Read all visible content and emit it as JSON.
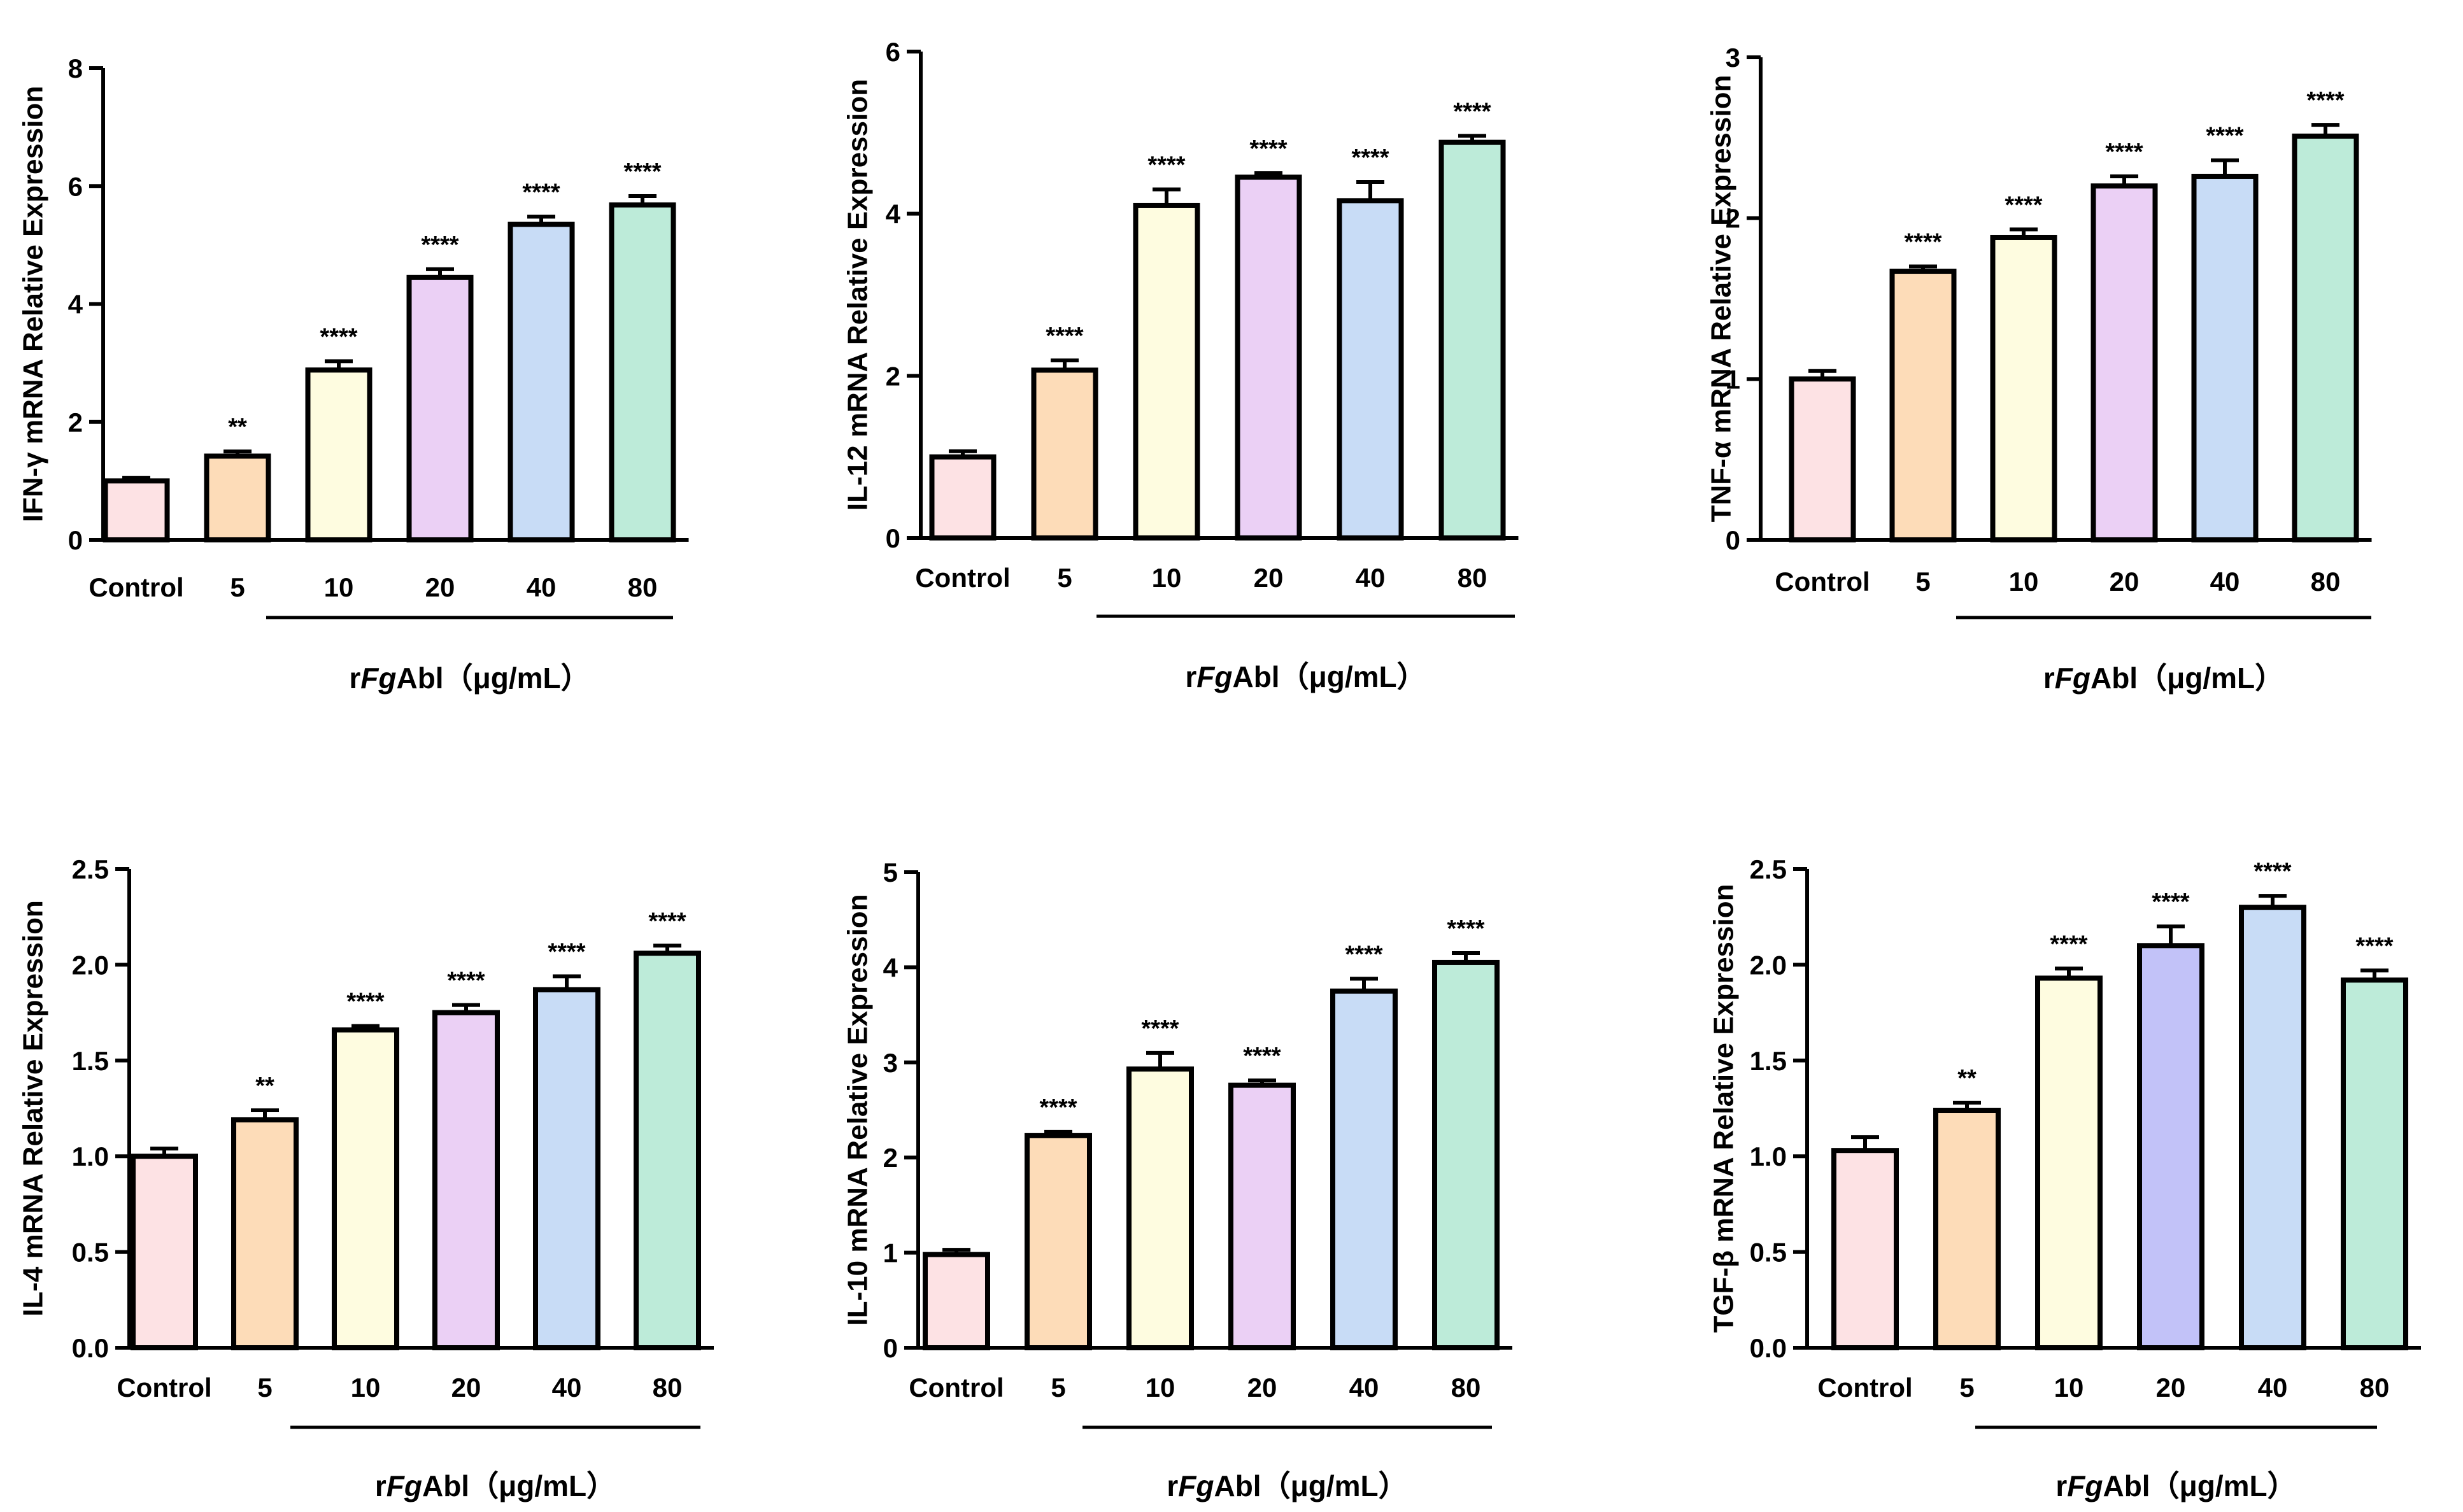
{
  "styles": {
    "colors": {
      "Control": "#fde2e4",
      "5": "#fddcb8",
      "10": "#fefce0",
      "20": "#ebd0f5",
      "20_alt": "#c2c2f8",
      "40": "#c8dcf6",
      "80": "#bdebd9",
      "axis": "#000000"
    }
  },
  "chart_data": [
    {
      "type": "bar",
      "ylabel": "IFN-γ mRNA Relative Expression",
      "ylim": [
        0,
        8
      ],
      "yticks": [
        "0",
        "2",
        "4",
        "6",
        "8"
      ],
      "tick_values": [
        0,
        2,
        4,
        6,
        8
      ],
      "categories": [
        "Control",
        "5",
        "10",
        "20",
        "40",
        "80"
      ],
      "values": [
        1.0,
        1.42,
        2.88,
        4.45,
        5.35,
        5.68
      ],
      "errors": [
        0.05,
        0.08,
        0.15,
        0.14,
        0.13,
        0.15
      ],
      "significance": [
        "",
        "**",
        "****",
        "****",
        "****",
        "****"
      ],
      "group_label_prefix": "r",
      "group_label_italic": "Fg",
      "group_label_suffix": "Abl（μg/mL）"
    },
    {
      "type": "bar",
      "ylabel": "IL-12 mRNA Relative Expression",
      "ylim": [
        0,
        6
      ],
      "yticks": [
        "0",
        "2",
        "4",
        "6"
      ],
      "tick_values": [
        0,
        2,
        4,
        6
      ],
      "categories": [
        "Control",
        "5",
        "10",
        "20",
        "40",
        "80"
      ],
      "values": [
        1.0,
        2.07,
        4.1,
        4.45,
        4.16,
        4.88
      ],
      "errors": [
        0.07,
        0.12,
        0.2,
        0.05,
        0.23,
        0.08
      ],
      "significance": [
        "",
        "****",
        "****",
        "****",
        "****",
        "****"
      ],
      "group_label_prefix": "r",
      "group_label_italic": "Fg",
      "group_label_suffix": "Abl（μg/mL）"
    },
    {
      "type": "bar",
      "ylabel": "TNF-α mRNA Relative Expression",
      "ylim": [
        0,
        3
      ],
      "yticks": [
        "0",
        "1",
        "2",
        "3"
      ],
      "tick_values": [
        0,
        1,
        2,
        3
      ],
      "categories": [
        "Control",
        "5",
        "10",
        "20",
        "40",
        "80"
      ],
      "values": [
        1.0,
        1.67,
        1.88,
        2.2,
        2.26,
        2.51
      ],
      "errors": [
        0.05,
        0.03,
        0.05,
        0.06,
        0.1,
        0.07
      ],
      "significance": [
        "",
        "****",
        "****",
        "****",
        "****",
        "****"
      ],
      "group_label_prefix": "r",
      "group_label_italic": "Fg",
      "group_label_suffix": "Abl（μg/mL）"
    },
    {
      "type": "bar",
      "ylabel": "IL-4 mRNA Relative Expression",
      "ylim": [
        0,
        2.5
      ],
      "yticks": [
        "0.0",
        "0.5",
        "1.0",
        "1.5",
        "2.0",
        "2.5"
      ],
      "tick_values": [
        0,
        0.5,
        1.0,
        1.5,
        2.0,
        2.5
      ],
      "categories": [
        "Control",
        "5",
        "10",
        "20",
        "40",
        "80"
      ],
      "values": [
        1.0,
        1.19,
        1.66,
        1.75,
        1.87,
        2.06
      ],
      "errors": [
        0.04,
        0.05,
        0.02,
        0.04,
        0.07,
        0.04
      ],
      "significance": [
        "",
        "**",
        "****",
        "****",
        "****",
        "****"
      ],
      "group_label_prefix": "r",
      "group_label_italic": "Fg",
      "group_label_suffix": "Abl（μg/mL）"
    },
    {
      "type": "bar",
      "ylabel": "IL-10 mRNA Relative Expression",
      "ylim": [
        0,
        5
      ],
      "yticks": [
        "0",
        "1",
        "2",
        "3",
        "4",
        "5"
      ],
      "tick_values": [
        0,
        1,
        2,
        3,
        4,
        5
      ],
      "categories": [
        "Control",
        "5",
        "10",
        "20",
        "40",
        "80"
      ],
      "values": [
        0.98,
        2.23,
        2.93,
        2.76,
        3.75,
        4.05
      ],
      "errors": [
        0.05,
        0.04,
        0.17,
        0.05,
        0.13,
        0.1
      ],
      "significance": [
        "",
        "****",
        "****",
        "****",
        "****",
        "****"
      ],
      "group_label_prefix": "r",
      "group_label_italic": "Fg",
      "group_label_suffix": "Abl（μg/mL）"
    },
    {
      "type": "bar",
      "ylabel": "TGF-β mRNA Relative Expression",
      "ylim": [
        0,
        2.5
      ],
      "yticks": [
        "0.0",
        "0.5",
        "1.0",
        "1.5",
        "2.0",
        "2.5"
      ],
      "tick_values": [
        0,
        0.5,
        1.0,
        1.5,
        2.0,
        2.5
      ],
      "categories": [
        "Control",
        "5",
        "10",
        "20",
        "40",
        "80"
      ],
      "values": [
        1.03,
        1.24,
        1.93,
        2.1,
        2.3,
        1.92
      ],
      "errors": [
        0.07,
        0.04,
        0.05,
        0.1,
        0.06,
        0.05
      ],
      "significance": [
        "",
        "**",
        "****",
        "****",
        "****",
        "****"
      ],
      "alt_color_20": true,
      "group_label_prefix": "r",
      "group_label_italic": "Fg",
      "group_label_suffix": "Abl（μg/mL）"
    }
  ]
}
